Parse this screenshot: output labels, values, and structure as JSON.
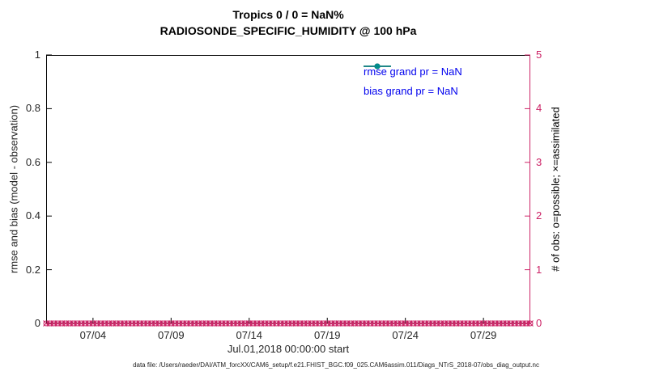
{
  "title": {
    "line1": "Tropics 0 / 0 = NaN%",
    "line2": "RADIOSONDE_SPECIFIC_HUMIDITY @ 100 hPa"
  },
  "legend": {
    "items": [
      {
        "label": "rmse grand pr = NaN",
        "color": "#000000"
      },
      {
        "label": "bias grand pr = NaN",
        "color": "#008c8c"
      }
    ],
    "text_color": "#0000ee"
  },
  "footer": {
    "data_file": "data file: /Users/raeder/DAI/ATM_forcXX/CAM6_setup/f.e21.FHIST_BGC.f09_025.CAM6assim.011/Diags_NTrS_2018-07/obs_diag_output.nc"
  },
  "chart_data": {
    "type": "line",
    "title": "Tropics 0 / 0 = NaN% — RADIOSONDE_SPECIFIC_HUMIDITY @ 100 hPa",
    "xlabel": "Jul.01,2018 00:00:00 start",
    "x_ticks": [
      "07/04",
      "07/09",
      "07/14",
      "07/19",
      "07/24",
      "07/29"
    ],
    "x_tick_days": [
      3,
      8,
      13,
      18,
      23,
      28
    ],
    "x_range_days": [
      0,
      31
    ],
    "x_start": "07/01/2018 00:00",
    "x_end": "08/01/2018 00:00",
    "grid": false,
    "legend_position": "top-right-inside",
    "left_axis": {
      "label": "rmse and bias (model - observation)",
      "ticks": [
        "0",
        "0.2",
        "0.4",
        "0.6",
        "0.8",
        "1"
      ],
      "range": [
        0,
        1
      ],
      "color": "#000000"
    },
    "right_axis": {
      "label": "# of obs: o=possible; ×=assimilated",
      "ticks": [
        "0",
        "1",
        "2",
        "3",
        "4",
        "5"
      ],
      "range": [
        0,
        5
      ],
      "color": "#cc2366"
    },
    "series": [
      {
        "name": "rmse grand pr = NaN",
        "color": "#000000",
        "marker": "filled-circle",
        "values": "all NaN (no line drawn)"
      },
      {
        "name": "bias grand pr = NaN",
        "color": "#008c8c",
        "marker": "filled-circle",
        "values": "all NaN (no line drawn)"
      }
    ],
    "obs_markers": {
      "description": "possible (o) and assimilated (x) observation counts, all equal 0, every 6 hours Jul 1 - Aug 1",
      "color": "#cc2366",
      "count": 125,
      "constant_value": 0
    }
  }
}
